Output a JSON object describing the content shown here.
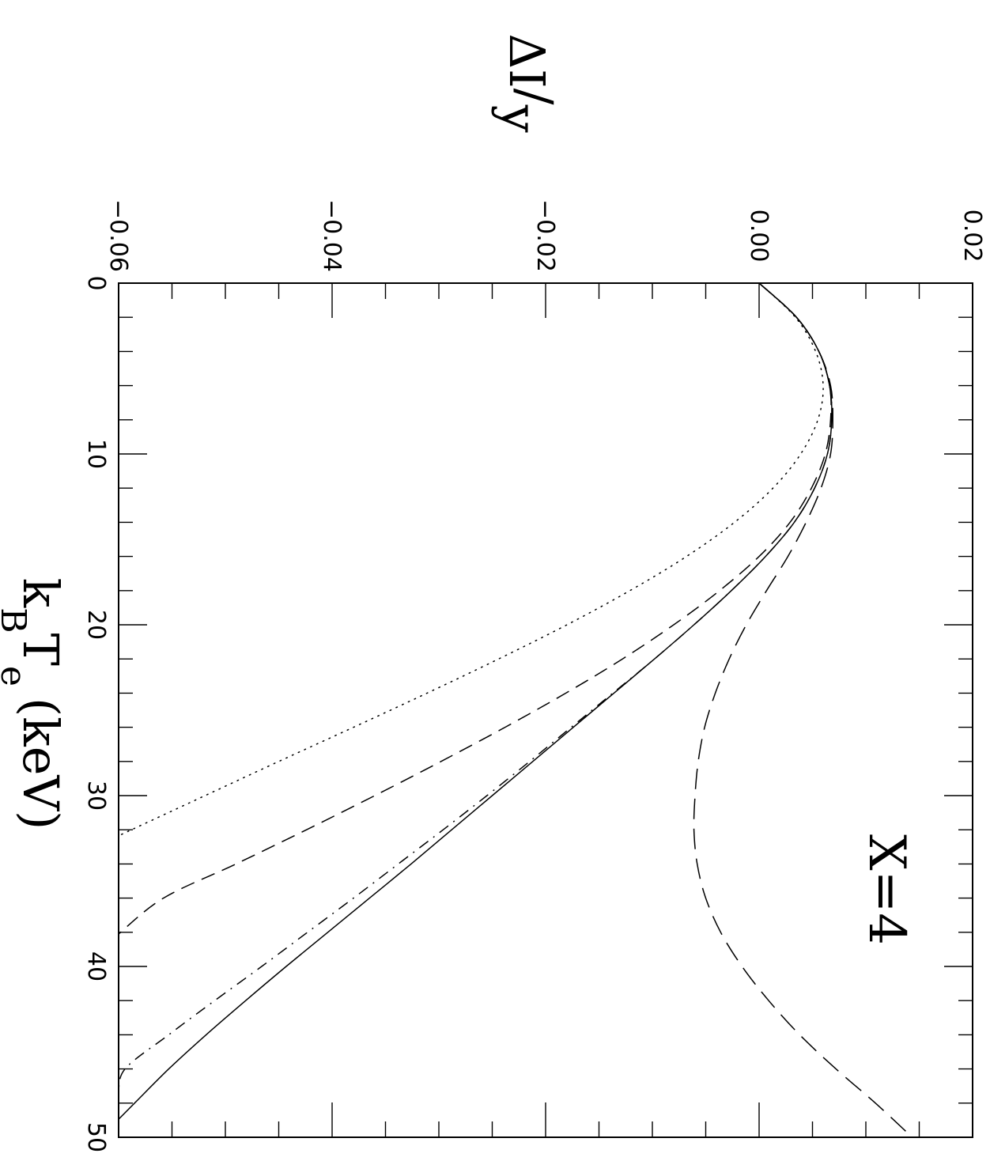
{
  "chart_data": {
    "type": "line",
    "xlabel": "k_B T_e (keV)",
    "xlabel_parts": {
      "k": "k",
      "B": "B",
      "T": "T",
      "e": "e",
      "unit": "(keV)"
    },
    "ylabel": "ΔI/y",
    "ylabel_parts": {
      "delta": "ΔI",
      "slash": "/",
      "y": "y"
    },
    "xlim": [
      0,
      50
    ],
    "ylim": [
      -0.06,
      0.02
    ],
    "x_ticks": [
      "0",
      "10",
      "20",
      "30",
      "40",
      "50"
    ],
    "y_ticks": [
      "−0.06",
      "−0.04",
      "−0.02",
      "0.00",
      "0.02"
    ],
    "annotation": "X=4",
    "orientation": "rotated 90° clockwise",
    "series": [
      {
        "style": "solid",
        "x": [
          0,
          2,
          4,
          6,
          8,
          10,
          12,
          14,
          16,
          18,
          20,
          22,
          24,
          26,
          28,
          30,
          32,
          34,
          36,
          38,
          40,
          42,
          44,
          46,
          48,
          49.2
        ],
        "y": [
          0.0,
          0.0035,
          0.0056,
          0.0066,
          0.0068,
          0.0064,
          0.0052,
          0.0033,
          0.0006,
          -0.0026,
          -0.0061,
          -0.0098,
          -0.0136,
          -0.0174,
          -0.0212,
          -0.025,
          -0.0288,
          -0.0326,
          -0.0365,
          -0.0404,
          -0.0443,
          -0.0481,
          -0.0518,
          -0.0553,
          -0.0585,
          -0.0604
        ]
      },
      {
        "style": "dash-dot",
        "x": [
          0,
          2,
          4,
          6,
          8,
          10,
          12,
          14,
          16,
          18,
          20,
          22,
          24,
          26,
          28,
          30,
          32,
          34,
          36,
          38,
          40,
          42,
          44,
          46,
          47.5
        ],
        "y": [
          0.0,
          0.0035,
          0.0056,
          0.0066,
          0.0068,
          0.0064,
          0.0052,
          0.0033,
          0.0006,
          -0.0026,
          -0.0061,
          -0.0098,
          -0.0137,
          -0.0176,
          -0.0215,
          -0.0255,
          -0.0296,
          -0.0338,
          -0.038,
          -0.0423,
          -0.0466,
          -0.051,
          -0.0553,
          -0.0594,
          -0.06
        ]
      },
      {
        "style": "dashed",
        "x": [
          0,
          2,
          4,
          6,
          8,
          10,
          12,
          14,
          16,
          18,
          20,
          22,
          24,
          26,
          28,
          30,
          32,
          34,
          36,
          38.1
        ],
        "y": [
          0.0,
          0.0035,
          0.0056,
          0.0066,
          0.0067,
          0.0062,
          0.0049,
          0.0029,
          0.0,
          -0.0037,
          -0.008,
          -0.0128,
          -0.0181,
          -0.0238,
          -0.0298,
          -0.036,
          -0.0424,
          -0.049,
          -0.0558,
          -0.06
        ]
      },
      {
        "style": "dotted",
        "x": [
          0,
          2,
          4,
          6,
          8,
          10,
          12,
          14,
          16,
          18,
          20,
          22,
          24,
          26,
          28,
          30,
          32,
          33.8
        ],
        "y": [
          0.0,
          0.0034,
          0.0053,
          0.006,
          0.0055,
          0.0039,
          0.0013,
          -0.0023,
          -0.0068,
          -0.0121,
          -0.018,
          -0.0244,
          -0.0311,
          -0.038,
          -0.045,
          -0.0519,
          -0.0588,
          -0.065
        ]
      },
      {
        "style": "long-dash",
        "x": [
          0,
          2,
          4,
          6,
          8,
          10,
          12,
          14,
          16,
          18,
          20,
          22,
          24,
          26,
          28,
          30,
          32,
          34,
          36,
          38,
          40,
          42,
          44,
          46,
          48,
          49.8
        ],
        "y": [
          0.0,
          0.0035,
          0.0056,
          0.0067,
          0.0069,
          0.0067,
          0.0058,
          0.0044,
          0.0027,
          0.0007,
          -0.0012,
          -0.0028,
          -0.0041,
          -0.0051,
          -0.0057,
          -0.006,
          -0.0061,
          -0.0058,
          -0.005,
          -0.0036,
          -0.0016,
          0.0009,
          0.0038,
          0.0072,
          0.0109,
          0.014
        ]
      }
    ]
  }
}
